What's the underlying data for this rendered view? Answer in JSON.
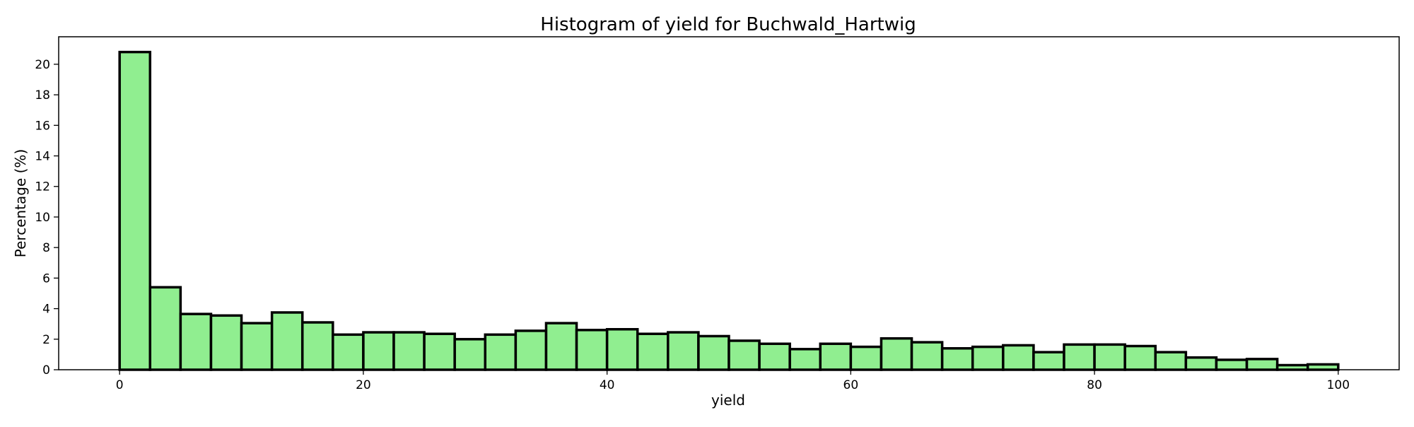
{
  "chart_data": {
    "type": "bar",
    "title": "Histogram of yield for Buchwald_Hartwig",
    "xlabel": "yield",
    "ylabel": "Percentage (%)",
    "xlim": [
      -5,
      105
    ],
    "ylim": [
      0,
      21.8
    ],
    "xticks": [
      0,
      20,
      40,
      60,
      80,
      100
    ],
    "yticks": [
      0,
      2,
      4,
      6,
      8,
      10,
      12,
      14,
      16,
      18,
      20
    ],
    "bin_edges": [
      0,
      2.5,
      5,
      7.5,
      10,
      12.5,
      15,
      17.5,
      20,
      22.5,
      25,
      27.5,
      30,
      32.5,
      35,
      37.5,
      40,
      42.5,
      45,
      47.5,
      50,
      52.5,
      55,
      57.5,
      60,
      62.5,
      65,
      67.5,
      70,
      72.5,
      75,
      77.5,
      80,
      82.5,
      85,
      87.5,
      90,
      92.5,
      95,
      97.5,
      100
    ],
    "values": [
      20.8,
      5.4,
      3.65,
      3.55,
      3.05,
      3.75,
      3.1,
      2.3,
      2.45,
      2.45,
      2.35,
      2.0,
      2.3,
      2.55,
      3.05,
      2.6,
      2.65,
      2.35,
      2.45,
      2.2,
      1.9,
      1.7,
      1.35,
      1.7,
      1.5,
      2.05,
      1.8,
      1.4,
      1.5,
      1.6,
      1.15,
      1.65,
      1.65,
      1.55,
      1.15,
      0.8,
      0.65,
      0.7,
      0.3,
      0.35
    ],
    "bar_color": "#90ee90",
    "edge_color": "#000000",
    "grid": false,
    "legend": "none"
  }
}
